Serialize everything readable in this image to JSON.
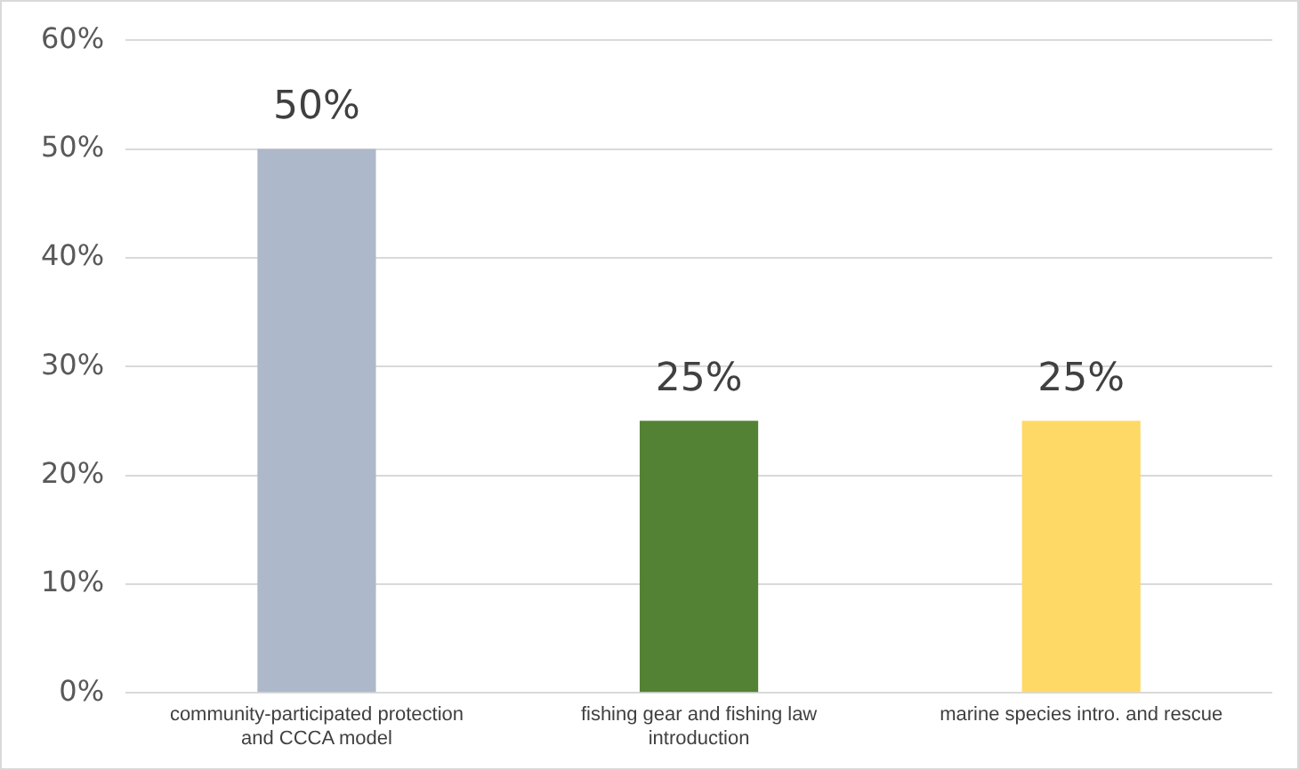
{
  "chart_data": {
    "type": "bar",
    "categories": [
      "community-participated protection and CCCA model",
      "fishing gear and fishing law introduction",
      "marine species intro. and rescue"
    ],
    "values": [
      50,
      25,
      25
    ],
    "colors": [
      "#adb9ca",
      "#548235",
      "#ffd966"
    ],
    "value_labels": [
      "50%",
      "25%",
      "25%"
    ],
    "ylim": [
      0,
      60
    ],
    "yticks": [
      {
        "value": 0,
        "label": "0%"
      },
      {
        "value": 10,
        "label": "10%"
      },
      {
        "value": 20,
        "label": "20%"
      },
      {
        "value": 30,
        "label": "30%"
      },
      {
        "value": 40,
        "label": "40%"
      },
      {
        "value": 50,
        "label": "50%"
      },
      {
        "value": 60,
        "label": "60%"
      }
    ],
    "grid": "y",
    "legend": false
  }
}
